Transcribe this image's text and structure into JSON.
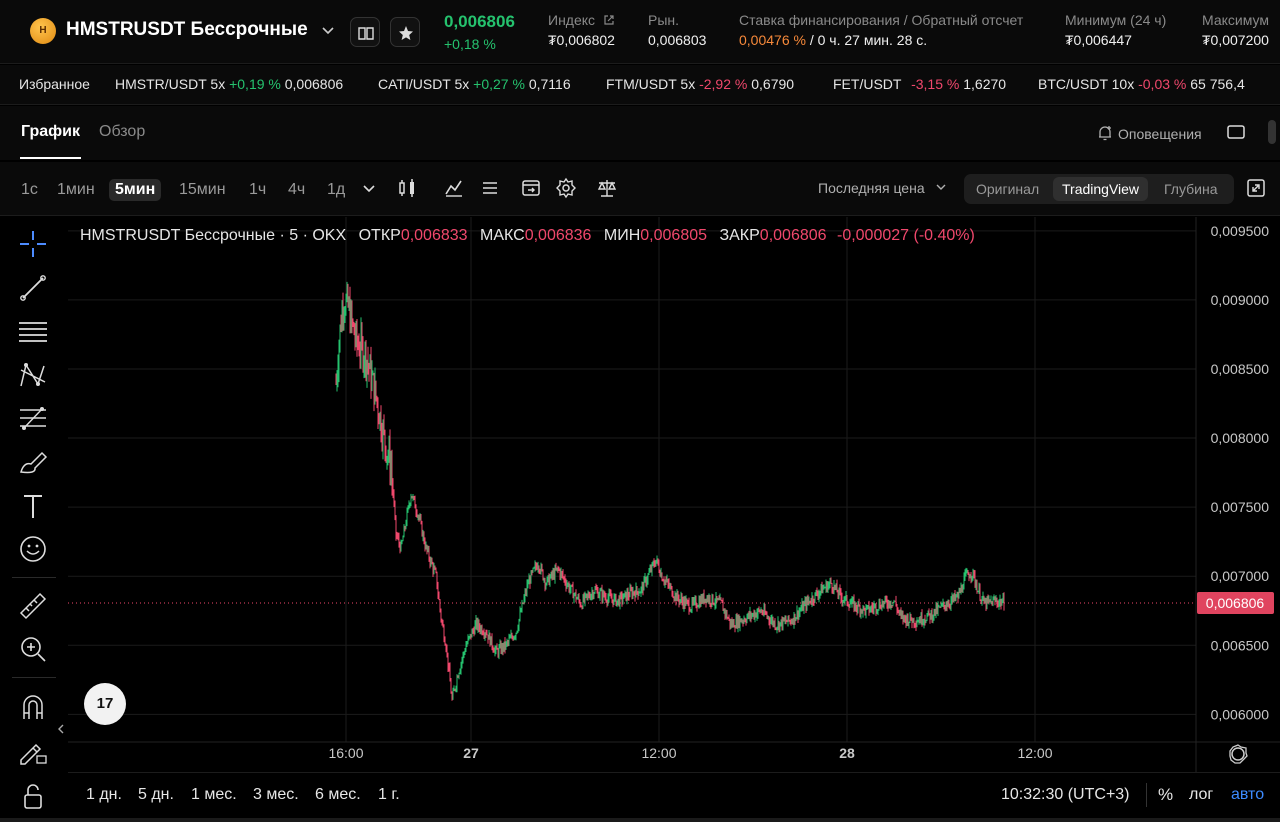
{
  "header": {
    "coin_badge": "H",
    "pair_title": "HMSTRUSDT Бессрочные",
    "last_price": "0,006806",
    "price_change": "+0,18 %",
    "index_label": "Индекс",
    "index_value": "₮0,006802",
    "market_label": "Рын.",
    "market_value": "0,006803",
    "funding_label": "Ставка финансирования / Обратный отсчет",
    "funding_rate": "0,00476 %",
    "funding_countdown": "/ 0 ч. 27 мин. 28 с.",
    "low_label": "Минимум (24 ч)",
    "low_value": "₮0,006447",
    "high_label": "Максимум",
    "high_value": "₮0,007200"
  },
  "ticker": {
    "favorites_label": "Избранное",
    "items": [
      {
        "pair": "HMSTR/USDT 5x",
        "change": "+0,19 %",
        "price": "0,006806",
        "dir": "up"
      },
      {
        "pair": "CATI/USDT 5x",
        "change": "+0,27 %",
        "price": "0,7116",
        "dir": "up"
      },
      {
        "pair": "FTM/USDT 5x",
        "change": "-2,92 %",
        "price": "0,6790",
        "dir": "down"
      },
      {
        "pair": "FET/USDT",
        "change": "-3,15 %",
        "price": "1,6270",
        "dir": "down"
      },
      {
        "pair": "BTC/USDT 10x",
        "change": "-0,03 %",
        "price": "65 756,4",
        "dir": "down"
      }
    ]
  },
  "tabs": {
    "chart": "График",
    "overview": "Обзор",
    "alerts": "Оповещения"
  },
  "toolbar": {
    "timeframes": [
      "1с",
      "1мин",
      "5мин",
      "15мин",
      "1ч",
      "4ч",
      "1д"
    ],
    "selected_timeframe": "5мин",
    "price_type": "Последняя цена",
    "views": [
      "Оригинал",
      "TradingView",
      "Глубина"
    ],
    "selected_view": "TradingView"
  },
  "legend": {
    "title": "HMSTRUSDT Бессрочные · 5 · OKX",
    "open_label": "ОТКР",
    "open_value": "0,006833",
    "high_label": "МАКС",
    "high_value": "0,006836",
    "low_label": "МИН",
    "low_value": "0,006805",
    "close_label": "ЗАКР",
    "close_value": "0,006806",
    "change": "-0,000027 (-0.40%)"
  },
  "tv_logo": "17",
  "bottom": {
    "ranges": [
      "1 дн.",
      "5 дн.",
      "1 мес.",
      "3 мес.",
      "6 мес.",
      "1 г."
    ],
    "clock": "10:32:30 (UTC+3)",
    "percent": "%",
    "log": "лог",
    "auto": "авто"
  },
  "colors": {
    "up": "#25c26e",
    "down": "#f0486c",
    "funding": "#f7893a",
    "accent": "#3d8bff"
  },
  "chart_data": {
    "type": "candlestick",
    "ylim": [
      0.0058,
      0.0096
    ],
    "y_ticks": [
      "0,009500",
      "0,009000",
      "0,008500",
      "0,008000",
      "0,007500",
      "0,007000",
      "0,006500",
      "0,006000"
    ],
    "y_tick_values": [
      0.0095,
      0.009,
      0.0085,
      0.008,
      0.0075,
      0.007,
      0.0065,
      0.006
    ],
    "x_ticks": [
      "16:00",
      "27",
      "12:00",
      "28",
      "12:00"
    ],
    "current_price": 0.006806,
    "current_price_label": "0,006806",
    "price_path": [
      [
        0,
        0.0084
      ],
      [
        3,
        0.0087
      ],
      [
        7,
        0.009
      ],
      [
        12,
        0.00895
      ],
      [
        20,
        0.0087
      ],
      [
        30,
        0.0086
      ],
      [
        40,
        0.0083
      ],
      [
        48,
        0.008
      ],
      [
        55,
        0.0078
      ],
      [
        60,
        0.0073
      ],
      [
        65,
        0.0072
      ],
      [
        70,
        0.0074
      ],
      [
        75,
        0.0076
      ],
      [
        82,
        0.00745
      ],
      [
        90,
        0.0072
      ],
      [
        100,
        0.007
      ],
      [
        105,
        0.0067
      ],
      [
        110,
        0.0065
      ],
      [
        116,
        0.0061
      ],
      [
        122,
        0.0063
      ],
      [
        130,
        0.0065
      ],
      [
        140,
        0.00665
      ],
      [
        150,
        0.0066
      ],
      [
        160,
        0.00645
      ],
      [
        170,
        0.0065
      ],
      [
        180,
        0.0066
      ],
      [
        192,
        0.00695
      ],
      [
        202,
        0.0071
      ],
      [
        210,
        0.00695
      ],
      [
        222,
        0.00705
      ],
      [
        235,
        0.0069
      ],
      [
        245,
        0.0068
      ],
      [
        258,
        0.0069
      ],
      [
        270,
        0.00685
      ],
      [
        282,
        0.00682
      ],
      [
        295,
        0.00688
      ],
      [
        305,
        0.0069
      ],
      [
        320,
        0.00712
      ],
      [
        326,
        0.007
      ],
      [
        340,
        0.00685
      ],
      [
        355,
        0.00678
      ],
      [
        370,
        0.00685
      ],
      [
        385,
        0.0068
      ],
      [
        395,
        0.00665
      ],
      [
        410,
        0.0067
      ],
      [
        425,
        0.00675
      ],
      [
        440,
        0.00665
      ],
      [
        455,
        0.00668
      ],
      [
        470,
        0.0068
      ],
      [
        485,
        0.0069
      ],
      [
        495,
        0.00695
      ],
      [
        505,
        0.00685
      ],
      [
        515,
        0.0068
      ],
      [
        530,
        0.00675
      ],
      [
        545,
        0.0068
      ],
      [
        558,
        0.00682
      ],
      [
        565,
        0.0067
      ],
      [
        580,
        0.00668
      ],
      [
        595,
        0.00672
      ],
      [
        610,
        0.0068
      ],
      [
        622,
        0.00685
      ],
      [
        630,
        0.007
      ],
      [
        636,
        0.00703
      ],
      [
        642,
        0.0069
      ],
      [
        648,
        0.0068
      ],
      [
        660,
        0.00682
      ],
      [
        668,
        0.00681
      ]
    ]
  }
}
